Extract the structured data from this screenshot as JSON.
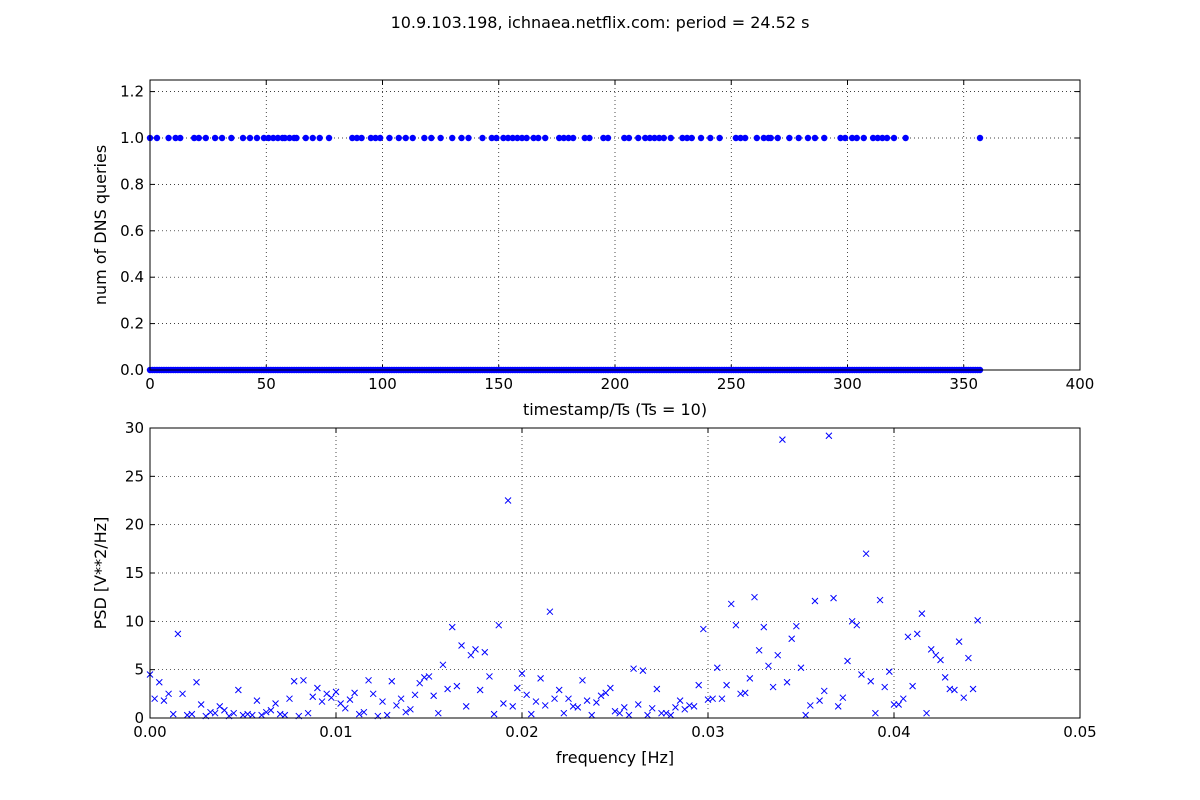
{
  "figure": {
    "title": "10.9.103.198, ichnaea.netflix.com: period = 24.52 s"
  },
  "chart_data": [
    {
      "type": "scatter",
      "marker": "circle",
      "color": "#0000ff",
      "xlabel": "timestamp/Ts (Ts = 10)",
      "ylabel": "num of DNS queries",
      "xlim": [
        0,
        400
      ],
      "ylim": [
        0,
        1.25
      ],
      "xticks": [
        0,
        50,
        100,
        150,
        200,
        250,
        300,
        350,
        400
      ],
      "yticks": [
        0.0,
        0.2,
        0.4,
        0.6,
        0.8,
        1.0,
        1.2
      ],
      "xtick_labels": [
        "0",
        "50",
        "100",
        "150",
        "200",
        "250",
        "300",
        "350",
        "400"
      ],
      "ytick_labels": [
        "0.0",
        "0.2",
        "0.4",
        "0.6",
        "0.8",
        "1.0",
        "1.2"
      ],
      "grid": true,
      "ones_x": [
        0,
        3,
        8,
        11,
        13,
        19,
        21,
        24,
        28,
        31,
        35,
        40,
        43,
        46,
        49,
        51,
        53,
        55,
        57,
        58,
        60,
        62,
        63,
        67,
        70,
        73,
        77,
        87,
        89,
        91,
        95,
        97,
        99,
        103,
        107,
        110,
        113,
        118,
        121,
        125,
        130,
        134,
        137,
        143,
        147,
        149,
        152,
        154,
        156,
        158,
        160,
        162,
        165,
        167,
        170,
        176,
        178,
        180,
        182,
        187,
        189,
        195,
        197,
        204,
        206,
        210,
        213,
        215,
        217,
        219,
        221,
        224,
        229,
        231,
        233,
        237,
        241,
        245,
        252,
        254,
        256,
        261,
        264,
        266,
        267,
        270,
        275,
        279,
        283,
        286,
        290,
        297,
        299,
        302,
        304,
        307,
        311,
        313,
        315,
        317,
        320,
        325,
        357
      ],
      "zeros_x_range": [
        0,
        357
      ],
      "zeros_step": 1
    },
    {
      "type": "scatter",
      "marker": "x",
      "color": "#0000ff",
      "xlabel": "frequency [Hz]",
      "ylabel": "PSD [V**2/Hz]",
      "xlim": [
        0,
        0.05
      ],
      "ylim": [
        0,
        30
      ],
      "xticks": [
        0.0,
        0.01,
        0.02,
        0.03,
        0.04,
        0.05
      ],
      "yticks": [
        0,
        5,
        10,
        15,
        20,
        25,
        30
      ],
      "xtick_labels": [
        "0.00",
        "0.01",
        "0.02",
        "0.03",
        "0.04",
        "0.05"
      ],
      "ytick_labels": [
        "0",
        "5",
        "10",
        "15",
        "20",
        "25",
        "30"
      ],
      "grid": true,
      "x_start": 0,
      "x_step": 0.00025,
      "y": [
        4.5,
        2.0,
        3.7,
        1.8,
        2.5,
        0.4,
        8.7,
        2.5,
        0.3,
        0.4,
        3.7,
        1.4,
        0.2,
        0.6,
        0.5,
        1.2,
        0.8,
        0.2,
        0.5,
        2.9,
        0.3,
        0.4,
        0.3,
        1.8,
        0.3,
        0.6,
        0.8,
        1.5,
        0.4,
        0.3,
        2.0,
        3.8,
        0.2,
        3.9,
        0.5,
        2.2,
        3.1,
        1.7,
        2.5,
        2.1,
        2.7,
        1.5,
        1.0,
        1.9,
        2.6,
        0.4,
        0.6,
        3.9,
        2.5,
        0.2,
        1.7,
        0.3,
        3.8,
        1.3,
        2.0,
        0.6,
        0.9,
        2.4,
        3.6,
        4.2,
        4.3,
        2.3,
        0.5,
        5.5,
        3.0,
        9.4,
        3.3,
        7.5,
        1.2,
        6.5,
        7.1,
        2.9,
        6.8,
        4.3,
        0.4,
        9.6,
        1.5,
        22.5,
        1.2,
        3.1,
        4.6,
        2.4,
        0.4,
        1.7,
        4.1,
        1.3,
        11.0,
        2.0,
        2.9,
        0.5,
        2.0,
        1.2,
        1.1,
        3.9,
        1.8,
        0.3,
        1.6,
        2.3,
        2.6,
        3.1,
        0.7,
        0.5,
        1.1,
        0.3,
        5.1,
        1.4,
        4.9,
        0.3,
        1.0,
        3.0,
        0.5,
        0.5,
        0.3,
        1.1,
        1.8,
        0.9,
        1.3,
        1.2,
        3.4,
        9.2,
        1.9,
        2.0,
        5.2,
        2.0,
        3.4,
        11.8,
        9.6,
        2.5,
        2.6,
        4.1,
        12.5,
        7.0,
        9.4,
        5.4,
        3.2,
        6.5,
        28.8,
        3.7,
        8.2,
        9.5,
        5.2,
        0.3,
        1.3,
        12.1,
        1.8,
        2.8,
        29.2,
        12.4,
        1.2,
        2.1,
        5.9,
        10.0,
        9.6,
        4.5,
        17.0,
        3.8,
        0.5,
        12.2,
        3.2,
        4.8,
        1.4,
        1.4,
        2.0,
        8.4,
        3.3,
        8.7,
        10.8,
        0.5,
        7.1,
        6.5,
        6.0,
        4.2,
        3.0,
        2.9,
        7.9,
        2.1,
        6.2,
        3.0,
        10.1
      ]
    }
  ]
}
